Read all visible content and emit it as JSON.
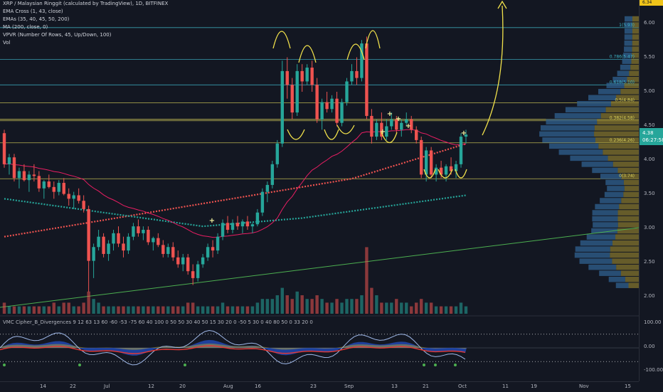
{
  "legend": {
    "title": "XRP / Malaysian Ringgit (calculated by TradingView), 1D, BITFINEX",
    "indicators": [
      "EMA Cross (1, 43, close)",
      "EMAs (35, 40, 45, 50, 200)",
      "MA (200, close, 0)",
      "VPVR (Number Of Rows, 45, Up/Down, 100)",
      "Vol"
    ]
  },
  "oscillator_legend": "VMC Cipher_B_Divergences 9 12 63 13 60 -60 -53 -75 60 40 100 0 50 50 30 40 50 15 30 20 0 -50 5 30 0 40 80 50 0 33 20 0",
  "price_axis": {
    "labels": [
      "6.00",
      "5.50",
      "5.00",
      "4.50",
      "4.00",
      "3.50",
      "3.00",
      "2.50",
      "2.00"
    ],
    "top_badge": "6.34",
    "last_price": "4.38",
    "countdown": "06:27:58"
  },
  "oscillator_axis": {
    "labels": [
      "100.00",
      "0.00",
      "-100.00"
    ]
  },
  "time_axis": {
    "labels": [
      "14",
      "22",
      "Jul",
      "12",
      "20",
      "Aug",
      "16",
      "23",
      "Sep",
      "13",
      "21",
      "Oct",
      "11",
      "19",
      "Nov",
      "15"
    ]
  },
  "colors": {
    "background": "#131722",
    "up": "#26a69a",
    "down": "#ef5350",
    "fib_line": "#3fb6c8",
    "horizontal_yellow": "#d8d05a",
    "annotation": "#f2e24b",
    "ma200": "#ef5350",
    "ema200": "#26a69a",
    "ema_fast": "#e91e63",
    "trendline": "#4caf50",
    "vpvr_up": "#2e5d8a",
    "vpvr_down": "#8a7a2e"
  },
  "chart_data": [
    {
      "type": "candlestick",
      "title": "XRP / Malaysian Ringgit (calculated by TradingView), 1D, BITFINEX",
      "ylim": [
        1.8,
        6.3
      ],
      "y_scale": "linear",
      "grid": false,
      "fib_levels": [
        {
          "label": "1(5.93)",
          "value": 5.93
        },
        {
          "label": "0.786(5.47)",
          "value": 5.47
        },
        {
          "label": "0.618(5.10)",
          "value": 5.1
        },
        {
          "label": "0.5(4.84)",
          "value": 4.84
        },
        {
          "label": "0.382(4.58)",
          "value": 4.58
        },
        {
          "label": "0.236(4.26)",
          "value": 4.26
        },
        {
          "label": "0(3.74)",
          "value": 3.74
        }
      ],
      "ohlc": [
        [
          4.4,
          4.45,
          3.9,
          3.95
        ],
        [
          3.95,
          4.1,
          3.8,
          4.05
        ],
        [
          4.05,
          4.1,
          3.7,
          3.75
        ],
        [
          3.75,
          3.9,
          3.6,
          3.85
        ],
        [
          3.85,
          3.95,
          3.7,
          3.72
        ],
        [
          3.72,
          3.85,
          3.55,
          3.8
        ],
        [
          3.8,
          3.95,
          3.7,
          3.78
        ],
        [
          3.78,
          3.85,
          3.55,
          3.6
        ],
        [
          3.6,
          3.72,
          3.45,
          3.7
        ],
        [
          3.7,
          3.8,
          3.6,
          3.62
        ],
        [
          3.62,
          3.7,
          3.45,
          3.55
        ],
        [
          3.55,
          3.72,
          3.5,
          3.68
        ],
        [
          3.68,
          3.75,
          3.5,
          3.52
        ],
        [
          3.52,
          3.6,
          3.35,
          3.45
        ],
        [
          3.45,
          3.55,
          3.3,
          3.5
        ],
        [
          3.5,
          3.6,
          3.38,
          3.42
        ],
        [
          3.42,
          3.5,
          3.25,
          3.3
        ],
        [
          3.3,
          3.35,
          2.1,
          2.55
        ],
        [
          2.55,
          2.8,
          2.3,
          2.75
        ],
        [
          2.75,
          3.0,
          2.7,
          2.9
        ],
        [
          2.9,
          2.95,
          2.6,
          2.65
        ],
        [
          2.65,
          2.85,
          2.55,
          2.8
        ],
        [
          2.8,
          3.0,
          2.7,
          2.95
        ],
        [
          2.95,
          3.05,
          2.75,
          2.8
        ],
        [
          2.8,
          2.9,
          2.6,
          2.7
        ],
        [
          2.7,
          2.95,
          2.65,
          2.9
        ],
        [
          2.9,
          3.1,
          2.85,
          3.05
        ],
        [
          3.05,
          3.15,
          2.9,
          2.95
        ],
        [
          2.95,
          3.05,
          2.85,
          3.0
        ],
        [
          3.0,
          3.05,
          2.78,
          2.82
        ],
        [
          2.82,
          2.9,
          2.7,
          2.88
        ],
        [
          2.88,
          2.95,
          2.75,
          2.78
        ],
        [
          2.78,
          2.85,
          2.6,
          2.65
        ],
        [
          2.65,
          2.8,
          2.6,
          2.75
        ],
        [
          2.75,
          2.82,
          2.55,
          2.6
        ],
        [
          2.6,
          2.7,
          2.45,
          2.5
        ],
        [
          2.5,
          2.65,
          2.4,
          2.6
        ],
        [
          2.6,
          2.65,
          2.35,
          2.4
        ],
        [
          2.4,
          2.5,
          2.2,
          2.3
        ],
        [
          2.3,
          2.55,
          2.25,
          2.5
        ],
        [
          2.5,
          2.65,
          2.45,
          2.6
        ],
        [
          2.6,
          2.8,
          2.55,
          2.75
        ],
        [
          2.75,
          2.85,
          2.6,
          2.7
        ],
        [
          2.7,
          2.95,
          2.65,
          2.9
        ],
        [
          2.9,
          3.15,
          2.85,
          3.1
        ],
        [
          3.1,
          3.2,
          2.95,
          3.0
        ],
        [
          3.0,
          3.15,
          2.95,
          3.1
        ],
        [
          3.1,
          3.2,
          3.0,
          3.05
        ],
        [
          3.05,
          3.15,
          2.95,
          3.12
        ],
        [
          3.12,
          3.2,
          3.0,
          3.05
        ],
        [
          3.05,
          3.1,
          2.95,
          3.08
        ],
        [
          3.08,
          3.3,
          3.05,
          3.25
        ],
        [
          3.25,
          3.6,
          3.2,
          3.55
        ],
        [
          3.55,
          3.7,
          3.4,
          3.65
        ],
        [
          3.65,
          4.0,
          3.6,
          3.95
        ],
        [
          3.95,
          4.3,
          3.9,
          4.25
        ],
        [
          4.25,
          5.45,
          4.2,
          5.3
        ],
        [
          5.3,
          5.5,
          4.9,
          5.1
        ],
        [
          5.1,
          5.2,
          4.6,
          4.7
        ],
        [
          4.7,
          5.4,
          4.65,
          5.3
        ],
        [
          5.3,
          5.4,
          5.0,
          5.15
        ],
        [
          5.15,
          5.4,
          5.1,
          5.35
        ],
        [
          5.35,
          5.45,
          5.0,
          5.1
        ],
        [
          5.1,
          5.2,
          4.55,
          4.6
        ],
        [
          4.6,
          4.9,
          4.45,
          4.85
        ],
        [
          4.85,
          5.0,
          4.7,
          4.75
        ],
        [
          4.75,
          4.95,
          4.7,
          4.9
        ],
        [
          4.9,
          5.0,
          4.5,
          4.55
        ],
        [
          4.55,
          4.9,
          4.5,
          4.85
        ],
        [
          4.85,
          5.2,
          4.8,
          5.15
        ],
        [
          5.15,
          5.4,
          5.1,
          5.3
        ],
        [
          5.3,
          5.5,
          5.1,
          5.2
        ],
        [
          5.2,
          5.75,
          5.15,
          5.7
        ],
        [
          5.7,
          5.8,
          4.6,
          4.65
        ],
        [
          4.65,
          4.75,
          4.25,
          4.35
        ],
        [
          4.35,
          4.6,
          4.3,
          4.55
        ],
        [
          4.55,
          4.7,
          4.3,
          4.35
        ],
        [
          4.35,
          4.6,
          4.3,
          4.5
        ],
        [
          4.5,
          4.7,
          4.45,
          4.6
        ],
        [
          4.6,
          4.65,
          4.4,
          4.45
        ],
        [
          4.45,
          4.6,
          4.35,
          4.55
        ],
        [
          4.55,
          4.7,
          4.5,
          4.6
        ],
        [
          4.6,
          4.65,
          4.4,
          4.45
        ],
        [
          4.45,
          4.5,
          4.25,
          4.3
        ],
        [
          4.3,
          4.35,
          3.75,
          3.8
        ],
        [
          3.8,
          4.2,
          3.7,
          4.15
        ],
        [
          4.15,
          4.2,
          3.75,
          3.8
        ],
        [
          3.8,
          3.95,
          3.7,
          3.9
        ],
        [
          3.9,
          4.0,
          3.75,
          3.8
        ],
        [
          3.8,
          3.95,
          3.7,
          3.92
        ],
        [
          3.92,
          4.05,
          3.8,
          3.85
        ],
        [
          3.85,
          4.0,
          3.75,
          3.95
        ],
        [
          3.95,
          4.4,
          3.9,
          4.35
        ],
        [
          4.35,
          4.45,
          4.25,
          4.38
        ]
      ],
      "volume": [
        3,
        2,
        2,
        2,
        2,
        2,
        2,
        2,
        2,
        2,
        3,
        2,
        3,
        3,
        2,
        2,
        3,
        6,
        4,
        3,
        2,
        2,
        2,
        2,
        2,
        2,
        2,
        2,
        2,
        2,
        2,
        2,
        2,
        2,
        2,
        2,
        2,
        3,
        3,
        2,
        2,
        2,
        2,
        2,
        3,
        2,
        2,
        2,
        2,
        2,
        2,
        3,
        4,
        4,
        4,
        5,
        7,
        5,
        4,
        6,
        5,
        4,
        4,
        5,
        4,
        3,
        3,
        4,
        3,
        4,
        4,
        4,
        5,
        18,
        7,
        5,
        3,
        3,
        3,
        4,
        3,
        3,
        2,
        3,
        4,
        3,
        3,
        2,
        2,
        2,
        2,
        2,
        3,
        2
      ]
    },
    {
      "type": "line",
      "title": "VMC Cipher_B_Divergences",
      "ylim": [
        -120,
        120
      ],
      "y_ticks": [
        100,
        0,
        -100
      ]
    }
  ]
}
